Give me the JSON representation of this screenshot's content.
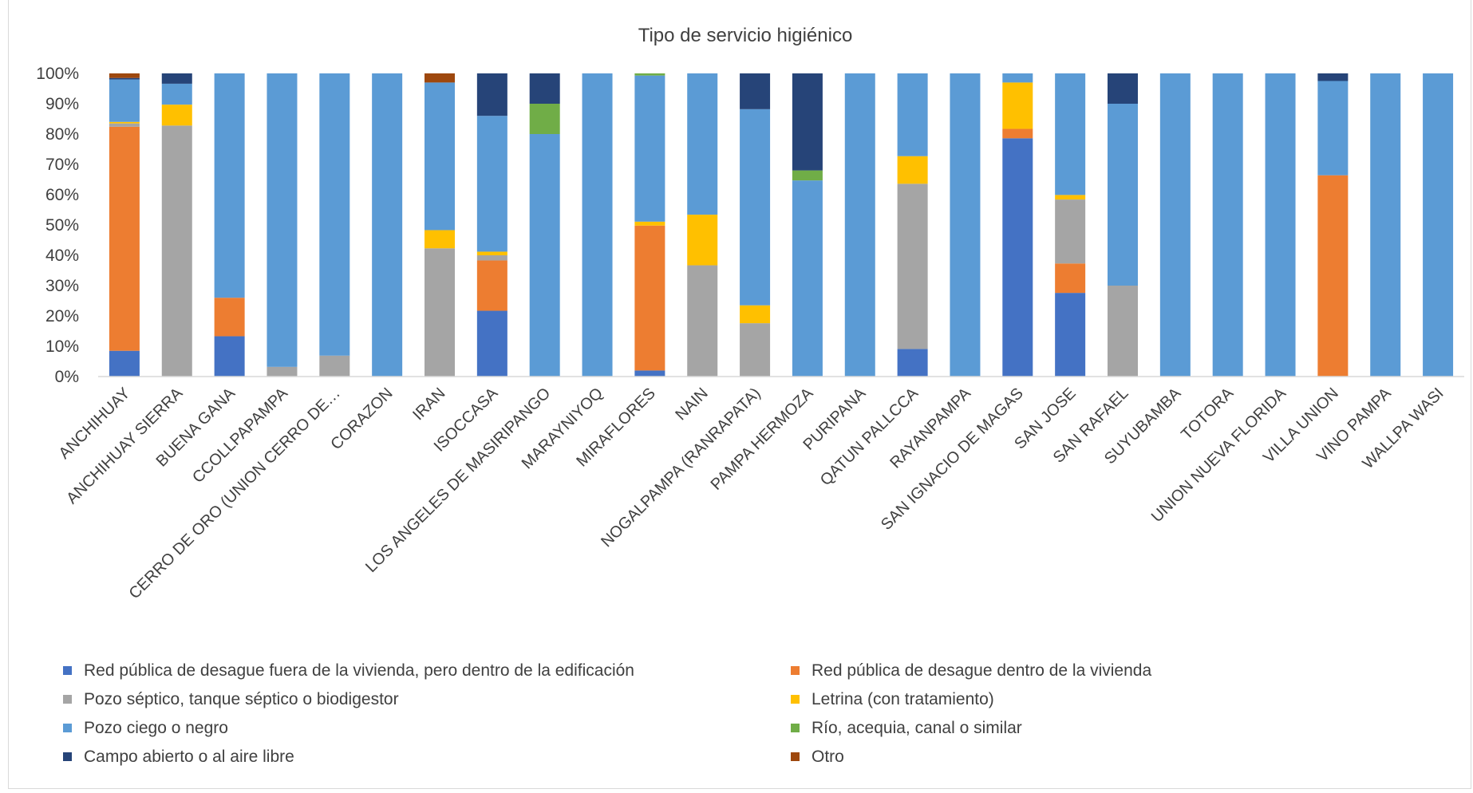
{
  "chart_data": {
    "type": "bar",
    "stacked": true,
    "percent_stacked": true,
    "title": "Tipo de servicio higiénico",
    "ylim": [
      0,
      100
    ],
    "yticks": [
      "0%",
      "10%",
      "20%",
      "30%",
      "40%",
      "50%",
      "60%",
      "70%",
      "80%",
      "90%",
      "100%"
    ],
    "grid": false,
    "legend_position": "bottom",
    "categories": [
      "ANCHIHUAY",
      "ANCHIHUAY SIERRA",
      "BUENA GANA",
      "CCOLLPAPAMPA",
      "CERRO DE ORO (UNION CERRO DE…",
      "CORAZON",
      "IRAN",
      "ISOCCASA",
      "LOS ANGELES DE MASIRIPANGO",
      "MARAYNIYOQ",
      "MIRAFLORES",
      "NAIN",
      "NOGALPAMPA (RANRAPATA)",
      "PAMPA HERMOZA",
      "PURIPANA",
      "QATUN PALLCCA",
      "RAYANPAMPA",
      "SAN IGNACIO DE MAGAS",
      "SAN JOSE",
      "SAN RAFAEL",
      "SUYUBAMBA",
      "TOTORA",
      "UNION NUEVA FLORIDA",
      "VILLA UNION",
      "VINO PAMPA",
      "WALLPA WASI"
    ],
    "series": [
      {
        "name": "Red pública de desague fuera de la vivienda, pero dentro de la edificación",
        "color": "#4472c4",
        "values": [
          8.5,
          0,
          13.3,
          0,
          0,
          0,
          0,
          21.7,
          0,
          0,
          2,
          0,
          0,
          0,
          0,
          9.1,
          0,
          78.6,
          27.6,
          0,
          0,
          0,
          0,
          0,
          0,
          0
        ]
      },
      {
        "name": "Red pública de desague dentro de la vivienda",
        "color": "#ed7d31",
        "values": [
          73.9,
          0,
          12.7,
          0,
          0,
          0,
          0,
          16.6,
          0,
          0,
          47.8,
          0,
          0,
          0,
          0,
          0,
          0,
          3.1,
          9.7,
          0,
          0,
          0,
          0,
          66.4,
          0,
          0
        ]
      },
      {
        "name": "Pozo séptico, tanque séptico o biodigestor",
        "color": "#a5a5a5",
        "values": [
          1.1,
          82.8,
          0,
          3.2,
          6.9,
          0,
          42.3,
          1.7,
          0,
          0,
          0,
          36.7,
          17.6,
          0,
          0,
          54.5,
          0,
          0,
          21.1,
          30,
          0,
          0,
          0,
          0,
          0,
          0
        ]
      },
      {
        "name": "Letrina (con tratamiento)",
        "color": "#ffc000",
        "values": [
          0.5,
          6.9,
          0,
          0,
          0,
          0,
          6,
          1.2,
          0,
          0,
          1.3,
          16.7,
          5.9,
          0,
          0,
          9.1,
          0,
          15.3,
          1.5,
          0,
          0,
          0,
          0,
          0,
          0,
          0
        ]
      },
      {
        "name": "Pozo ciego o negro",
        "color": "#5b9bd5",
        "values": [
          14,
          6.9,
          74,
          96.8,
          93.1,
          100,
          48.7,
          44.8,
          80,
          100,
          48.2,
          46.6,
          64.7,
          64.7,
          100,
          27.3,
          100,
          3,
          40.1,
          60,
          100,
          100,
          100,
          31.1,
          100,
          100
        ]
      },
      {
        "name": "Río, acequia, canal o similar",
        "color": "#70ad47",
        "values": [
          0,
          0,
          0,
          0,
          0,
          0,
          0,
          0,
          10,
          0,
          0.7,
          0,
          0,
          3.3,
          0,
          0,
          0,
          0,
          0,
          0,
          0,
          0,
          0,
          0,
          0,
          0
        ]
      },
      {
        "name": "Campo abierto o al aire libre",
        "color": "#264478",
        "values": [
          0.5,
          3.4,
          0,
          0,
          0,
          0,
          0,
          14,
          10,
          0,
          0,
          0,
          11.8,
          32,
          0,
          0,
          0,
          0,
          0,
          10,
          0,
          0,
          0,
          2.5,
          0,
          0
        ]
      },
      {
        "name": "Otro",
        "color": "#9e480e",
        "values": [
          1.5,
          0,
          0,
          0,
          0,
          0,
          3,
          0,
          0,
          0,
          0,
          0,
          0,
          0,
          0,
          0,
          0,
          0,
          0,
          0,
          0,
          0,
          0,
          0,
          0,
          0
        ]
      }
    ]
  }
}
